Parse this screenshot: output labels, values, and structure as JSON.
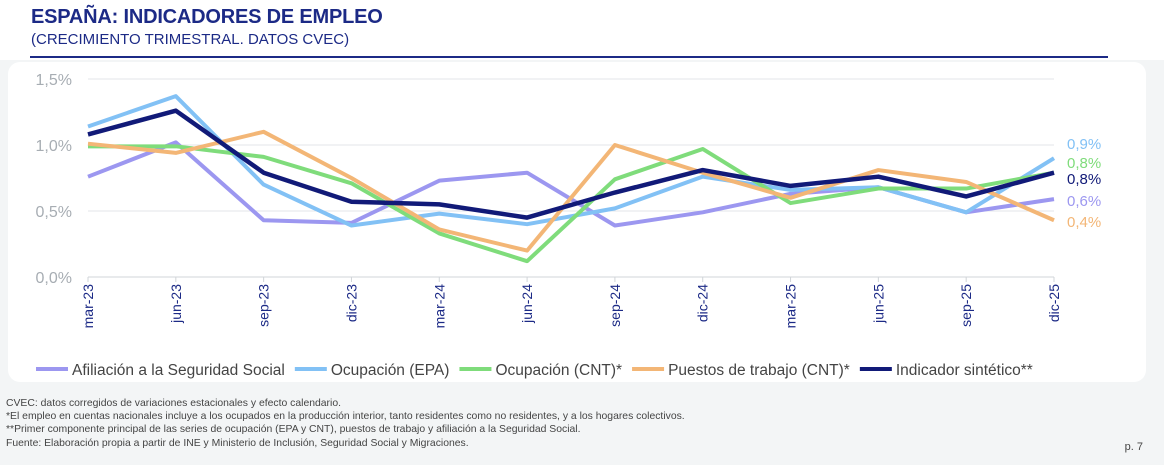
{
  "header": {
    "title": "ESPAÑA: INDICADORES DE EMPLEO",
    "subtitle": "(CRECIMIENTO TRIMESTRAL. DATOS CVEC)"
  },
  "chart_data": {
    "type": "line",
    "title": "ESPAÑA: INDICADORES DE EMPLEO",
    "subtitle": "(CRECIMIENTO TRIMESTRAL. DATOS CVEC)",
    "categories": [
      "mar-23",
      "jun-23",
      "sep-23",
      "dic-23",
      "mar-24",
      "jun-24",
      "sep-24",
      "dic-24",
      "mar-25",
      "jun-25",
      "sep-25",
      "dic-25"
    ],
    "ylim": [
      0,
      1.5
    ],
    "yticks": [
      "0,0%",
      "0,5%",
      "1,0%",
      "1,5%"
    ],
    "ytick_values": [
      0,
      0.5,
      1.0,
      1.5
    ],
    "grid": true,
    "legend": "bottom",
    "series": [
      {
        "name": "Afiliación a la Seguridad Social",
        "color": "#9c97f0",
        "width": 4,
        "end_label": "0,6%",
        "values": [
          0.76,
          1.02,
          0.43,
          0.41,
          0.73,
          0.79,
          0.39,
          0.49,
          0.63,
          0.68,
          0.49,
          0.59
        ]
      },
      {
        "name": "Ocupación (EPA)",
        "color": "#82c1f5",
        "width": 4,
        "end_label": "0,9%",
        "values": [
          1.14,
          1.37,
          0.7,
          0.39,
          0.48,
          0.4,
          0.52,
          0.76,
          0.66,
          0.68,
          0.49,
          0.9
        ]
      },
      {
        "name": "Ocupación (CNT)*",
        "color": "#7fdc7b",
        "width": 4,
        "end_label": "0,8%",
        "values": [
          0.99,
          0.99,
          0.91,
          0.71,
          0.33,
          0.12,
          0.74,
          0.97,
          0.56,
          0.67,
          0.67,
          0.79
        ]
      },
      {
        "name": "Puestos de trabajo (CNT)*",
        "color": "#f3b676",
        "width": 4,
        "end_label": "0,4%",
        "values": [
          1.01,
          0.94,
          1.1,
          0.75,
          0.36,
          0.2,
          1.0,
          0.79,
          0.6,
          0.81,
          0.72,
          0.43
        ]
      },
      {
        "name": "Indicador sintético**",
        "color": "#111a78",
        "width": 4.5,
        "end_label": "0,8%",
        "values": [
          1.08,
          1.26,
          0.79,
          0.57,
          0.55,
          0.45,
          0.64,
          0.81,
          0.69,
          0.76,
          0.61,
          0.79
        ]
      }
    ]
  },
  "notes": [
    "CVEC: datos corregidos de variaciones estacionales y efecto calendario.",
    "*El empleo en cuentas nacionales incluye a los ocupados en la producción interior, tanto residentes como no residentes, y a los hogares colectivos.",
    "**Primer componente principal de las series de ocupación (EPA y CNT), puestos de trabajo y afiliación a la Seguridad Social.",
    "Fuente: Elaboración propia a partir de INE y Ministerio de Inclusión, Seguridad Social y Migraciones."
  ],
  "page_number": "p. 7"
}
